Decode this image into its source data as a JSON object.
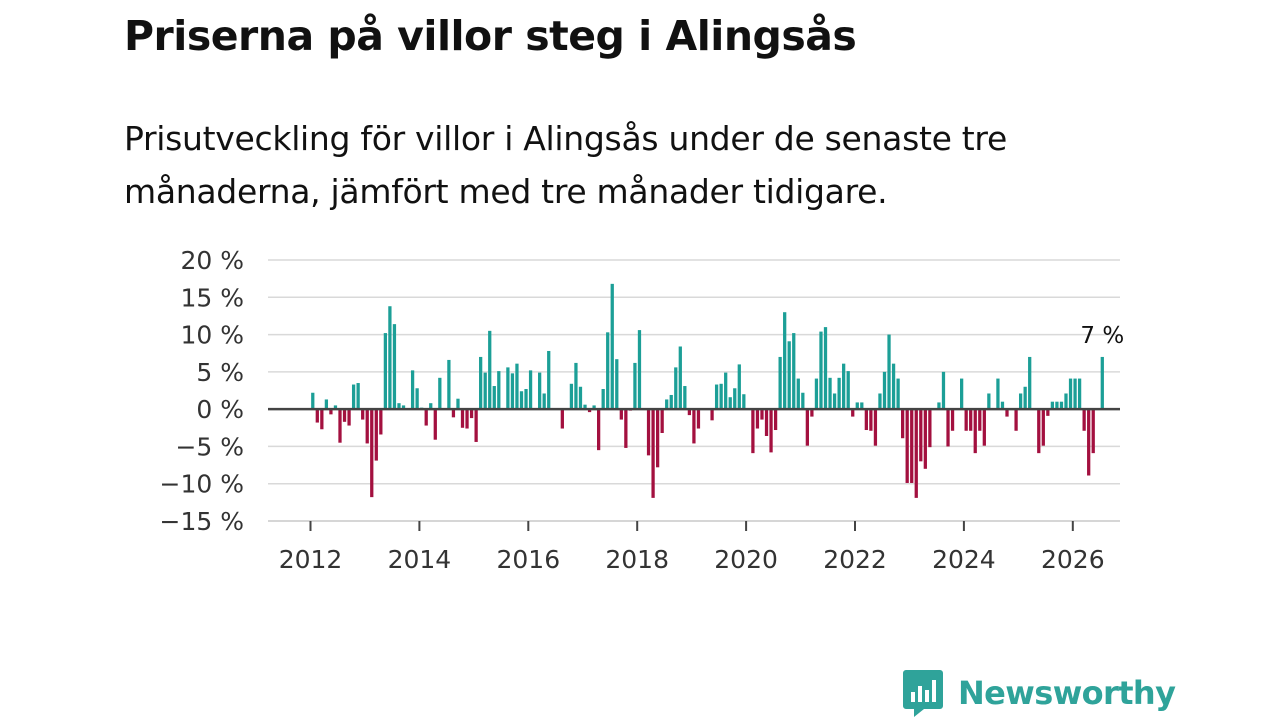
{
  "title": "Priserna på villor steg i Alingsås",
  "subtitle": "Prisutveckling för villor i Alingsås under de senaste tre månaderna, jämfört med tre månader tidigare.",
  "brand": {
    "name": "Newsworthy",
    "color": "#2fa39a",
    "icon": "newsworthy-logo-icon"
  },
  "colors": {
    "positive": "#1c9f97",
    "negative": "#a3103f",
    "grid": "#d9d9d9",
    "zero": "#444444"
  },
  "chart_data": {
    "type": "bar",
    "title": "Priserna på villor steg i Alingsås",
    "xlabel": "",
    "ylabel": "",
    "ylim": [
      -15,
      20
    ],
    "yticks": [
      20,
      15,
      10,
      5,
      0,
      -5,
      -10,
      -15
    ],
    "ytick_labels": [
      "20 %",
      "15 %",
      "10 %",
      "5 %",
      "0 %",
      "−5 %",
      "−10 %",
      "−15 %"
    ],
    "xticks": [
      2012,
      2014,
      2016,
      2018,
      2020,
      2022,
      2024,
      2026
    ],
    "xtick_labels": [
      "2012",
      "2014",
      "2016",
      "2018",
      "2020",
      "2022",
      "2024",
      "2026"
    ],
    "x_start": 2012.0,
    "x_step_months": 1,
    "values": [
      2.2,
      -1.8,
      -2.7,
      1.3,
      -0.7,
      0.5,
      -4.5,
      -1.7,
      -2.2,
      3.3,
      3.5,
      -1.4,
      -4.6,
      -11.8,
      -6.9,
      -3.4,
      10.2,
      13.8,
      11.4,
      0.8,
      0.5,
      0,
      5.2,
      2.8,
      0.2,
      -2.2,
      0.8,
      -4.1,
      4.2,
      0,
      6.6,
      -1.1,
      1.4,
      -2.5,
      -2.6,
      -1.2,
      -4.4,
      7.0,
      4.9,
      10.5,
      3.1,
      5.1,
      0,
      5.6,
      4.8,
      6.1,
      2.4,
      2.7,
      5.2,
      0.1,
      4.9,
      2.1,
      7.8,
      0,
      0,
      -2.6,
      0,
      3.4,
      6.2,
      3.0,
      0.6,
      -0.4,
      0.5,
      -5.5,
      2.7,
      10.3,
      16.8,
      6.7,
      -1.4,
      -5.2,
      -0.2,
      6.2,
      10.6,
      0,
      -6.2,
      -11.9,
      -7.8,
      -3.2,
      1.3,
      1.9,
      5.6,
      8.4,
      3.1,
      -0.8,
      -4.6,
      -2.6,
      0,
      0,
      -1.5,
      3.3,
      3.4,
      4.9,
      1.6,
      2.8,
      6.0,
      2.0,
      0,
      -5.9,
      -2.6,
      -1.4,
      -3.6,
      -5.8,
      -2.8,
      7.0,
      13.0,
      9.1,
      10.2,
      4.1,
      2.2,
      -4.9,
      -1.0,
      4.1,
      10.4,
      11.0,
      4.2,
      2.1,
      4.2,
      6.1,
      5.1,
      -1.0,
      0.9,
      0.9,
      -2.8,
      -2.9,
      -4.9,
      2.1,
      5.0,
      10.0,
      6.1,
      4.1,
      -3.9,
      -9.9,
      -9.9,
      -11.9,
      -7.0,
      -8.0,
      -5.1,
      0,
      0.9,
      5.0,
      -5.0,
      -2.9,
      0,
      4.1,
      -2.9,
      -2.9,
      -5.9,
      -2.9,
      -4.9,
      2.1,
      0,
      4.1,
      1.0,
      -1.0,
      0,
      -2.9,
      2.1,
      3.0,
      7.0,
      0,
      -5.9,
      -4.9,
      -0.9,
      1.0,
      1.0,
      1.0,
      2.1,
      4.1,
      4.1,
      4.1,
      -2.9,
      -8.9,
      -5.9,
      0,
      7.0
    ],
    "annotation": {
      "text": "7 %",
      "value": 7,
      "target": "last"
    }
  }
}
